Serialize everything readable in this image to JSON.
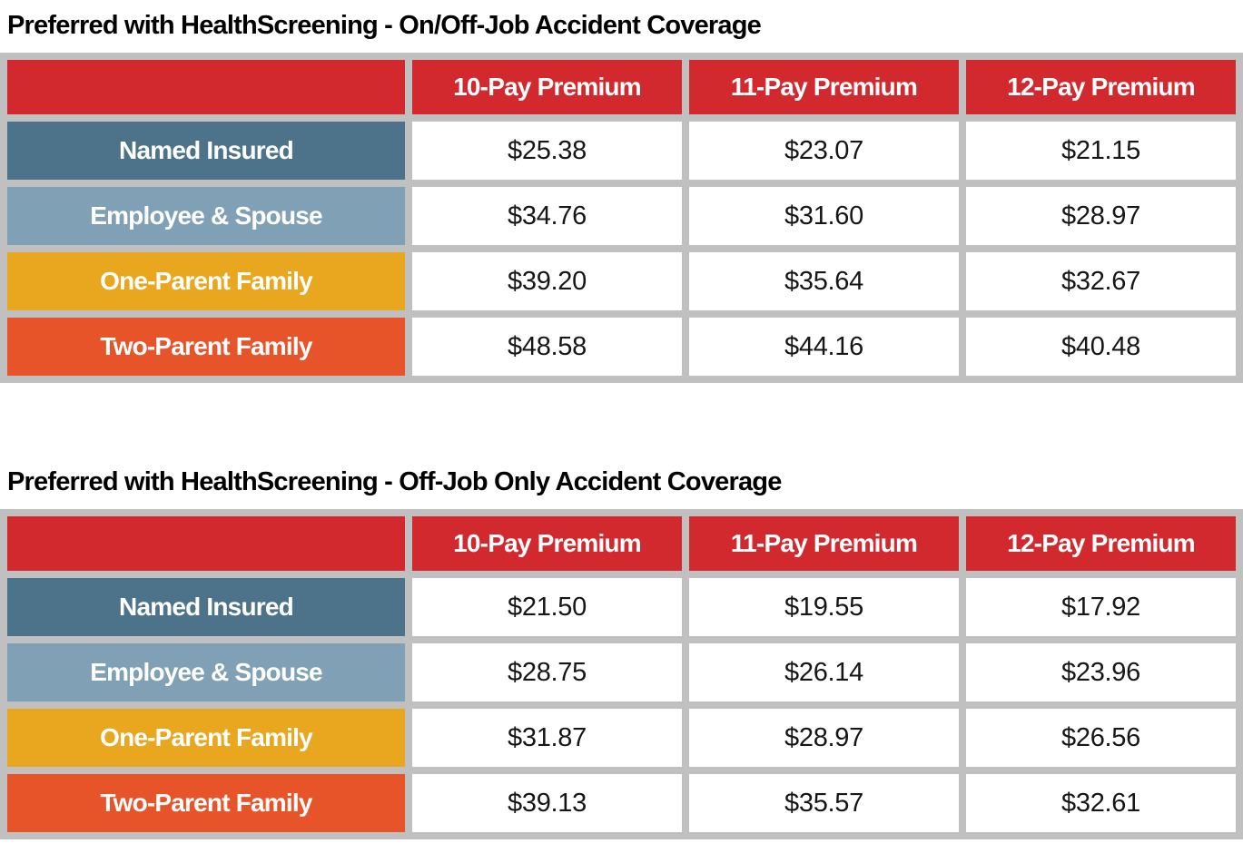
{
  "colors": {
    "header_red": "#d2292e",
    "grid_gray": "#c1c0c0",
    "cell_white": "#ffffff",
    "title_text": "#000000",
    "label_text": "#ffffff",
    "value_text": "#161616",
    "row_colors": [
      "#4c7389",
      "#7fa0b5",
      "#e8a71e",
      "#e8542a"
    ]
  },
  "tables": [
    {
      "title": "Preferred with HealthScreening - On/Off-Job Accident Coverage",
      "column_headers": [
        "10-Pay Premium",
        "11-Pay Premium",
        "12-Pay Premium"
      ],
      "rows": [
        {
          "label": "Named Insured",
          "values": [
            "$25.38",
            "$23.07",
            "$21.15"
          ]
        },
        {
          "label": "Employee & Spouse",
          "values": [
            "$34.76",
            "$31.60",
            "$28.97"
          ]
        },
        {
          "label": "One-Parent Family",
          "values": [
            "$39.20",
            "$35.64",
            "$32.67"
          ]
        },
        {
          "label": "Two-Parent Family",
          "values": [
            "$48.58",
            "$44.16",
            "$40.48"
          ]
        }
      ]
    },
    {
      "title": "Preferred with HealthScreening - Off-Job Only Accident Coverage",
      "column_headers": [
        "10-Pay Premium",
        "11-Pay Premium",
        "12-Pay Premium"
      ],
      "rows": [
        {
          "label": "Named Insured",
          "values": [
            "$21.50",
            "$19.55",
            "$17.92"
          ]
        },
        {
          "label": "Employee & Spouse",
          "values": [
            "$28.75",
            "$26.14",
            "$23.96"
          ]
        },
        {
          "label": "One-Parent Family",
          "values": [
            "$31.87",
            "$28.97",
            "$26.56"
          ]
        },
        {
          "label": "Two-Parent Family",
          "values": [
            "$39.13",
            "$35.57",
            "$32.61"
          ]
        }
      ]
    }
  ]
}
